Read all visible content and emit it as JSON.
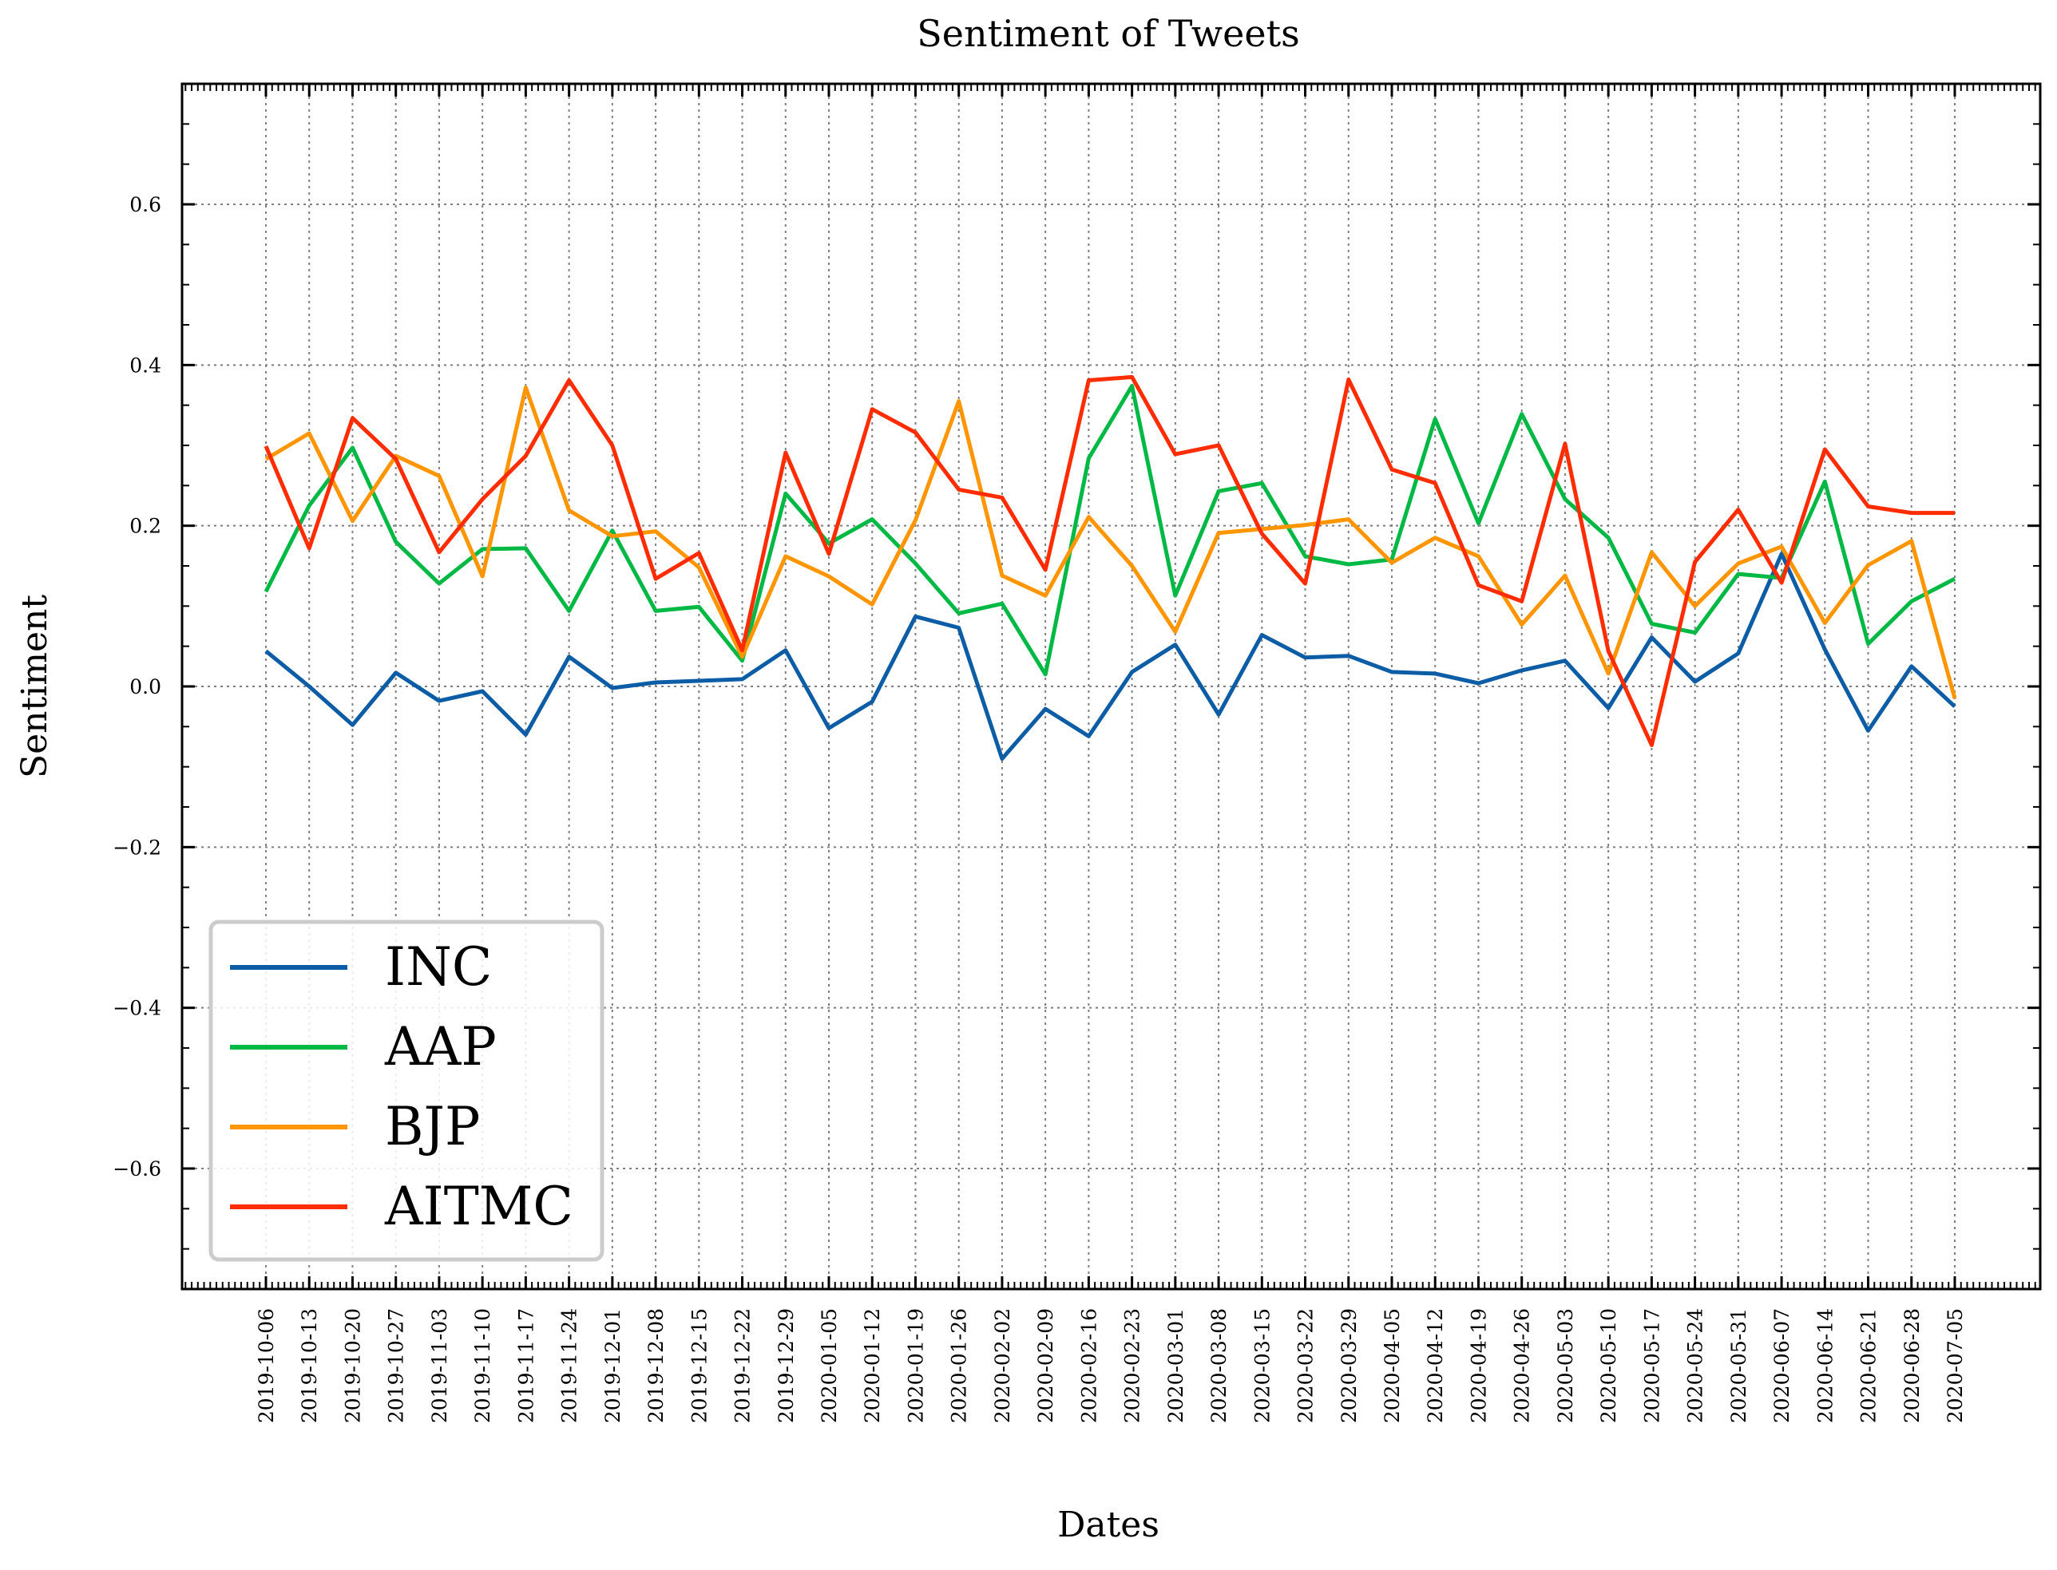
{
  "chart_data": {
    "type": "line",
    "title": "Sentiment of Tweets",
    "xlabel": "Dates",
    "ylabel": "Sentiment",
    "ylim": [
      -0.75,
      0.75
    ],
    "yticks": [
      -0.6,
      -0.4,
      -0.2,
      0.0,
      0.2,
      0.4,
      0.6
    ],
    "ytick_labels": [
      "−0.6",
      "−0.4",
      "−0.2",
      "0.0",
      "0.2",
      "0.4",
      "0.6"
    ],
    "grid": true,
    "legend_position": "lower-left",
    "x": [
      "2019-10-06",
      "2019-10-13",
      "2019-10-20",
      "2019-10-27",
      "2019-11-03",
      "2019-11-10",
      "2019-11-17",
      "2019-11-24",
      "2019-12-01",
      "2019-12-08",
      "2019-12-15",
      "2019-12-22",
      "2019-12-29",
      "2020-01-05",
      "2020-01-12",
      "2020-01-19",
      "2020-01-26",
      "2020-02-02",
      "2020-02-09",
      "2020-02-16",
      "2020-02-23",
      "2020-03-01",
      "2020-03-08",
      "2020-03-15",
      "2020-03-22",
      "2020-03-29",
      "2020-04-05",
      "2020-04-12",
      "2020-04-19",
      "2020-04-26",
      "2020-05-03",
      "2020-05-10",
      "2020-05-17",
      "2020-05-24",
      "2020-05-31",
      "2020-06-07",
      "2020-06-14",
      "2020-06-21",
      "2020-06-28",
      "2020-07-05"
    ],
    "series": [
      {
        "name": "INC",
        "color": "#0C5DA5",
        "values": [
          0.044,
          0.0,
          -0.048,
          0.017,
          -0.018,
          -0.006,
          -0.06,
          0.037,
          -0.002,
          0.005,
          0.007,
          0.009,
          0.045,
          -0.052,
          -0.019,
          0.087,
          0.073,
          -0.09,
          -0.028,
          -0.062,
          0.018,
          0.052,
          -0.035,
          0.064,
          0.036,
          0.038,
          0.018,
          0.016,
          0.004,
          0.02,
          0.032,
          -0.027,
          0.061,
          0.006,
          0.041,
          0.165,
          0.046,
          -0.055,
          0.025,
          -0.025
        ]
      },
      {
        "name": "AAP",
        "color": "#00B945",
        "values": [
          0.118,
          0.225,
          0.297,
          0.18,
          0.128,
          0.171,
          0.172,
          0.094,
          0.194,
          0.094,
          0.099,
          0.032,
          0.24,
          0.178,
          0.208,
          0.153,
          0.091,
          0.103,
          0.015,
          0.284,
          0.374,
          0.113,
          0.243,
          0.253,
          0.162,
          0.152,
          0.158,
          0.333,
          0.203,
          0.339,
          0.233,
          0.185,
          0.078,
          0.067,
          0.14,
          0.135,
          0.255,
          0.053,
          0.106,
          0.134
        ]
      },
      {
        "name": "BJP",
        "color": "#FF9500",
        "values": [
          0.283,
          0.315,
          0.206,
          0.287,
          0.262,
          0.137,
          0.372,
          0.219,
          0.187,
          0.193,
          0.148,
          0.037,
          0.162,
          0.137,
          0.102,
          0.207,
          0.355,
          0.138,
          0.113,
          0.211,
          0.15,
          0.068,
          0.191,
          0.196,
          0.201,
          0.208,
          0.154,
          0.185,
          0.162,
          0.077,
          0.138,
          0.016,
          0.167,
          0.1,
          0.153,
          0.174,
          0.079,
          0.151,
          0.181,
          -0.015
        ]
      },
      {
        "name": "AITMC",
        "color": "#FF2C00",
        "values": [
          0.299,
          0.172,
          0.334,
          0.283,
          0.167,
          0.233,
          0.287,
          0.381,
          0.3,
          0.134,
          0.166,
          0.045,
          0.291,
          0.165,
          0.345,
          0.316,
          0.245,
          0.235,
          0.145,
          0.381,
          0.385,
          0.289,
          0.3,
          0.19,
          0.128,
          0.382,
          0.27,
          0.253,
          0.126,
          0.106,
          0.302,
          0.044,
          -0.073,
          0.155,
          0.22,
          0.129,
          0.295,
          0.224,
          0.216,
          0.216
        ]
      }
    ]
  }
}
